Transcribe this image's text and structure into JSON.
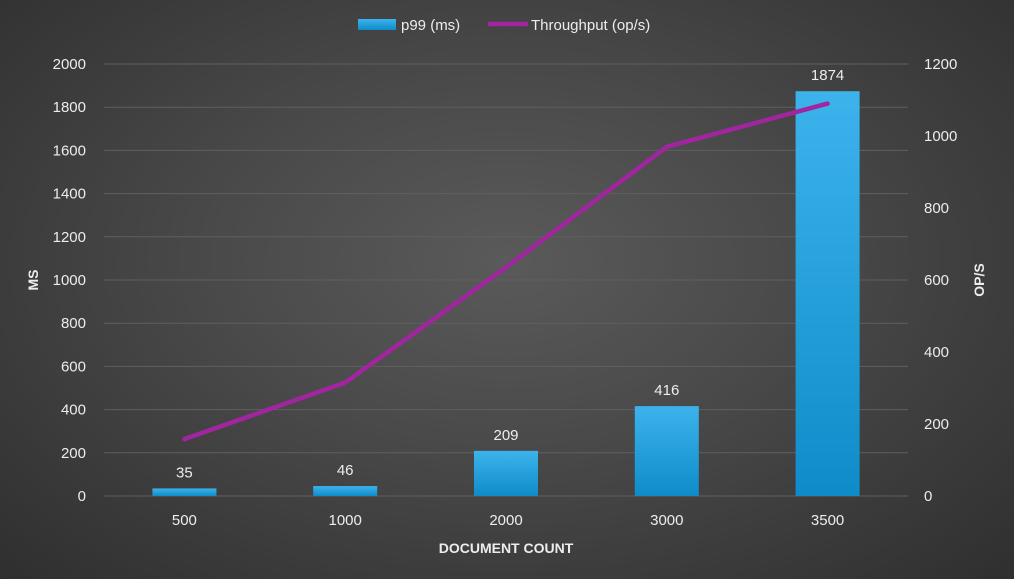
{
  "chart_data": {
    "type": "bar+line",
    "categories": [
      "500",
      "1000",
      "2000",
      "3000",
      "3500"
    ],
    "series": [
      {
        "name": "p99 (ms)",
        "kind": "bar",
        "axis": "left",
        "values": [
          35,
          46,
          209,
          416,
          1874
        ],
        "data_labels": [
          "35",
          "46",
          "209",
          "416",
          "1874"
        ],
        "color": "#1fa3e0"
      },
      {
        "name": "Throughput (op/s)",
        "kind": "line",
        "axis": "right",
        "values": [
          158,
          315,
          635,
          970,
          1090
        ],
        "color": "#a0259f"
      }
    ],
    "xlabel": "DOCUMENT COUNT",
    "ylabel": "MS",
    "y2label": "OP/S",
    "ylim": [
      0,
      2000
    ],
    "y2lim": [
      0,
      1200
    ],
    "yticks": [
      "0",
      "200",
      "400",
      "600",
      "800",
      "1000",
      "1200",
      "1400",
      "1600",
      "1800",
      "2000"
    ],
    "y2ticks": [
      "0",
      "200",
      "400",
      "600",
      "800",
      "1000",
      "1200"
    ],
    "grid": true,
    "legend_position": "top"
  }
}
